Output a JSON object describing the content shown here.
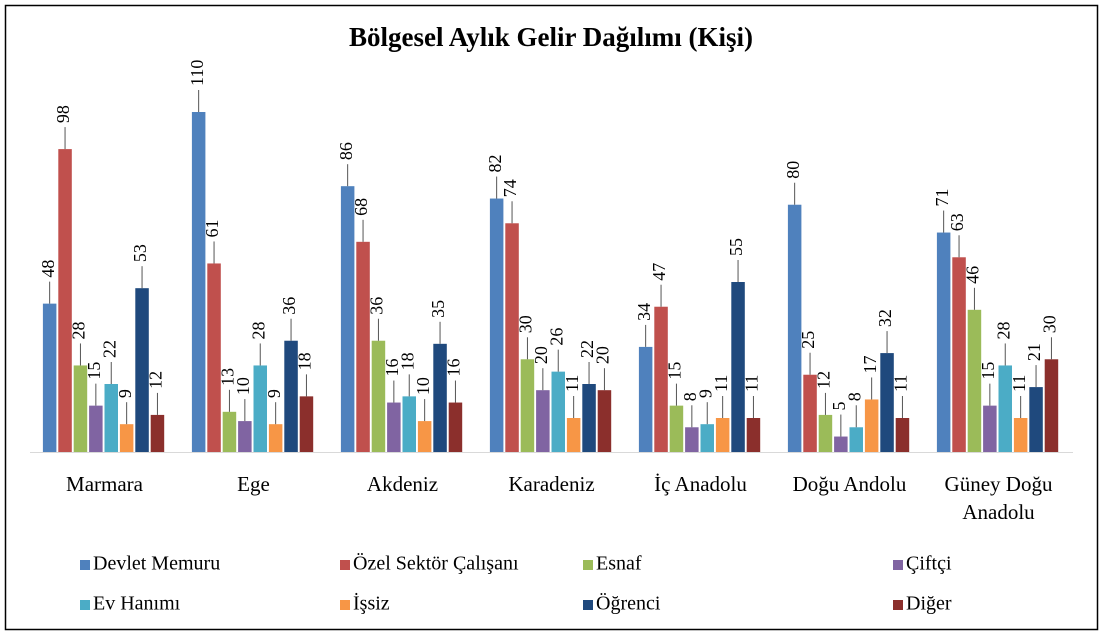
{
  "chart_data": {
    "type": "bar",
    "title": "Bölgesel Aylık Gelir Dağılımı (Kişi)",
    "categories": [
      "Marmara",
      "Ege",
      "Akdeniz",
      "Karadeniz",
      "İç Anadolu",
      "Doğu Andolu",
      "Güney Doğu Anadolu"
    ],
    "series": [
      {
        "name": "Devlet Memuru",
        "color": "#4f81bd",
        "values": [
          48,
          110,
          86,
          82,
          34,
          80,
          71
        ]
      },
      {
        "name": "Özel Sektör Çalışanı",
        "color": "#c0504d",
        "values": [
          98,
          61,
          68,
          74,
          47,
          25,
          63
        ]
      },
      {
        "name": "Esnaf",
        "color": "#9bbb59",
        "values": [
          28,
          13,
          36,
          30,
          15,
          12,
          46
        ]
      },
      {
        "name": "Çiftçi",
        "color": "#8064a2",
        "values": [
          15,
          10,
          16,
          20,
          8,
          5,
          15
        ]
      },
      {
        "name": "Ev Hanımı",
        "color": "#4bacc6",
        "values": [
          22,
          28,
          18,
          26,
          9,
          8,
          28
        ]
      },
      {
        "name": "İşsiz",
        "color": "#f79646",
        "values": [
          9,
          9,
          10,
          11,
          11,
          17,
          11
        ]
      },
      {
        "name": "Öğrenci",
        "color": "#1f497d",
        "values": [
          53,
          36,
          35,
          22,
          55,
          32,
          21
        ]
      },
      {
        "name": "Diğer",
        "color": "#8b2f2c",
        "values": [
          12,
          18,
          16,
          20,
          11,
          11,
          30
        ]
      }
    ],
    "ylim": [
      0,
      110
    ]
  }
}
